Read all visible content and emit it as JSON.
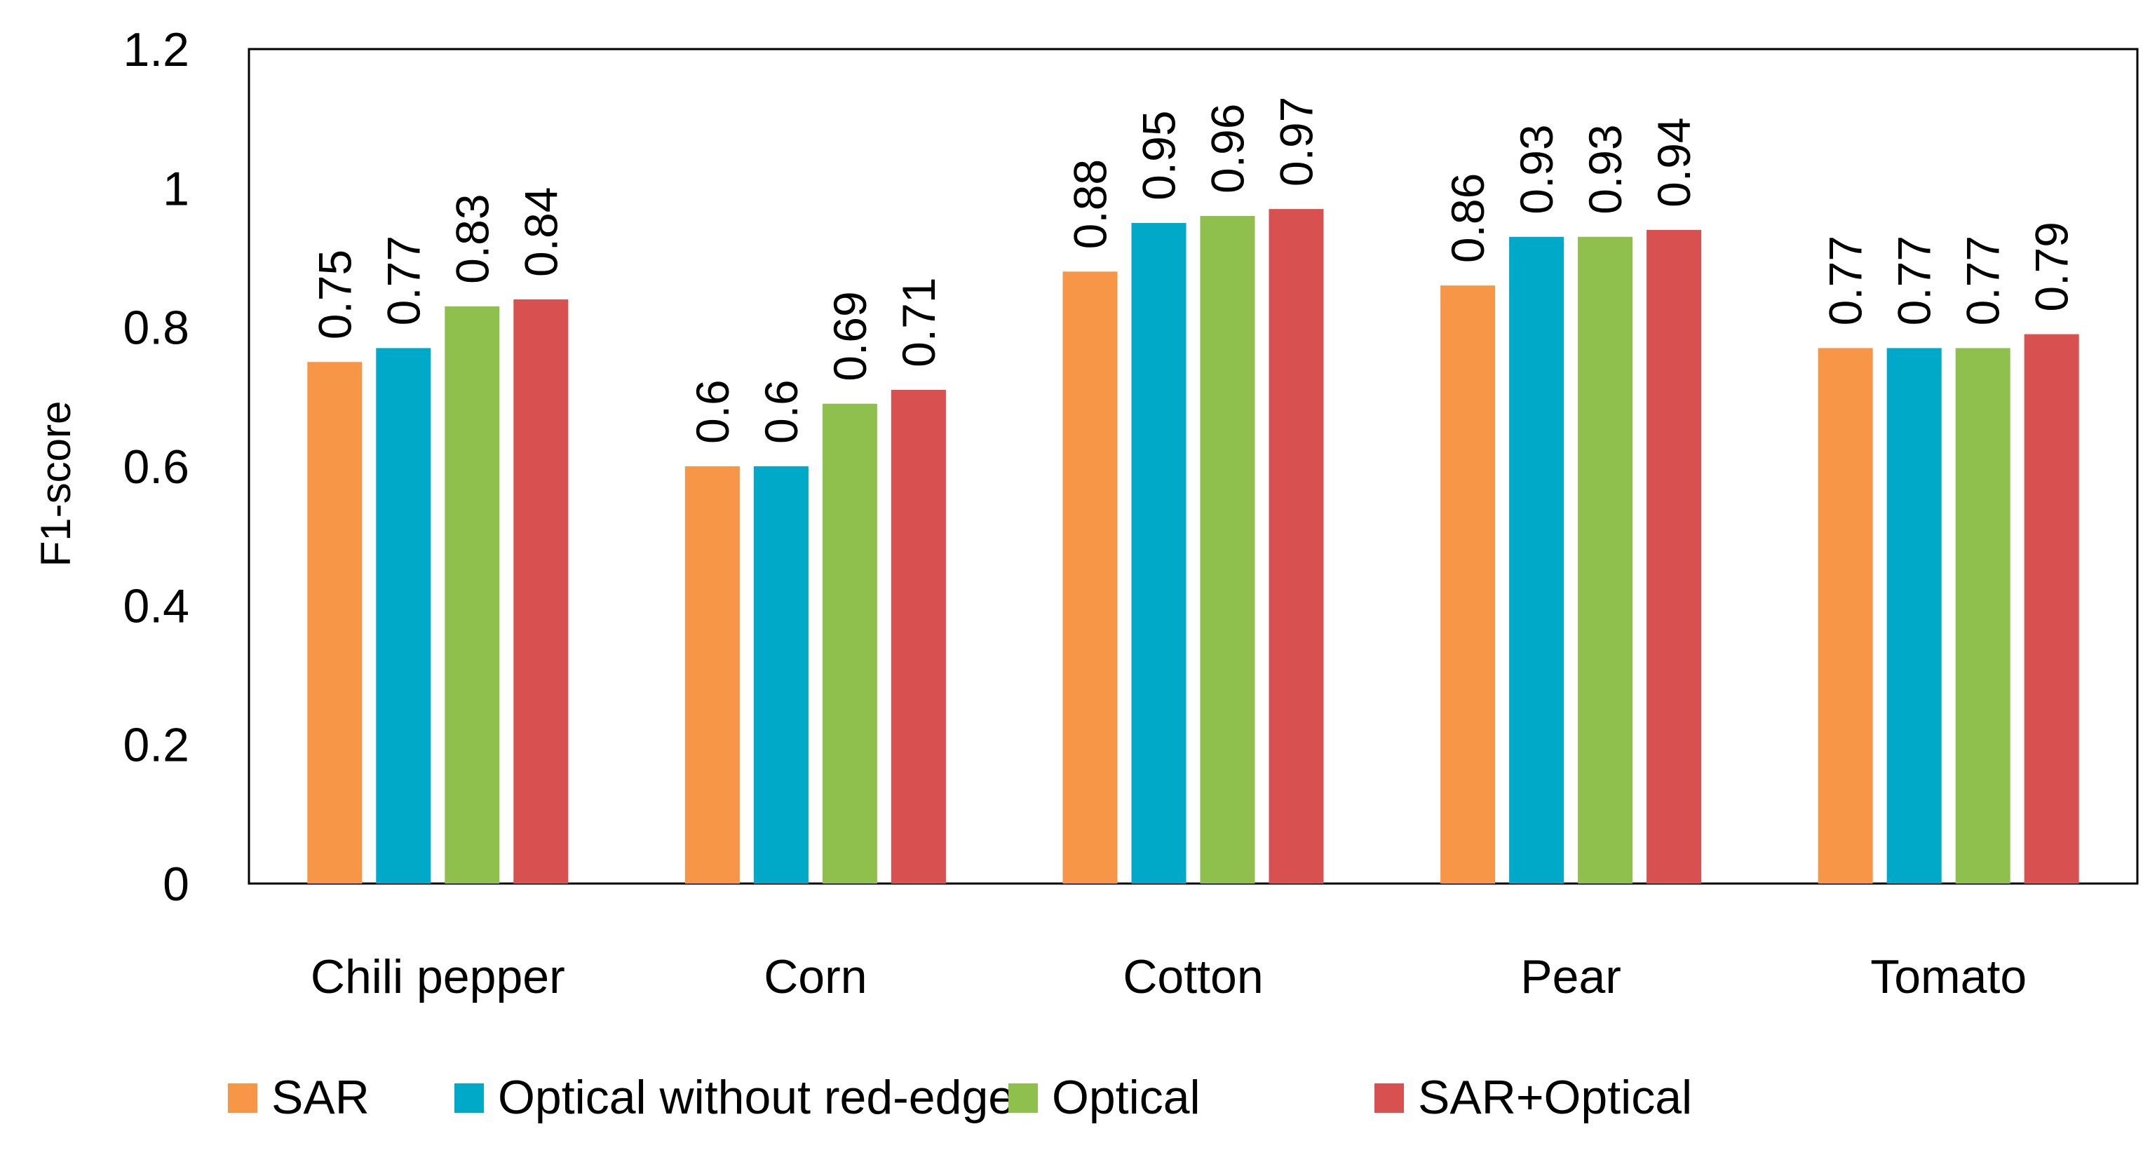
{
  "chart_data": {
    "type": "bar",
    "title": "",
    "xlabel": "",
    "ylabel": "F1-score",
    "ylim": [
      0,
      1.2
    ],
    "yticks": [
      "0",
      "0.2",
      "0.4",
      "0.6",
      "0.8",
      "1",
      "1.2"
    ],
    "grid": false,
    "legend_position": "bottom",
    "categories": [
      "Chili pepper",
      "Corn",
      "Cotton",
      "Pear",
      "Tomato"
    ],
    "series": [
      {
        "name": "SAR",
        "color": "#F79646",
        "values": [
          0.75,
          0.6,
          0.88,
          0.86,
          0.77
        ],
        "labels": [
          "0.75",
          "0.6",
          "0.88",
          "0.86",
          "0.77"
        ]
      },
      {
        "name": "Optical without red-edge",
        "color": "#00A9C7",
        "values": [
          0.77,
          0.6,
          0.95,
          0.93,
          0.77
        ],
        "labels": [
          "0.77",
          "0.6",
          "0.95",
          "0.93",
          "0.77"
        ]
      },
      {
        "name": "Optical",
        "color": "#8FBF4D",
        "values": [
          0.83,
          0.69,
          0.96,
          0.93,
          0.77
        ],
        "labels": [
          "0.83",
          "0.69",
          "0.96",
          "0.93",
          "0.77"
        ]
      },
      {
        "name": "SAR+Optical",
        "color": "#D95050",
        "values": [
          0.84,
          0.71,
          0.97,
          0.94,
          0.79
        ],
        "labels": [
          "0.84",
          "0.71",
          "0.97",
          "0.94",
          "0.79"
        ]
      }
    ]
  }
}
